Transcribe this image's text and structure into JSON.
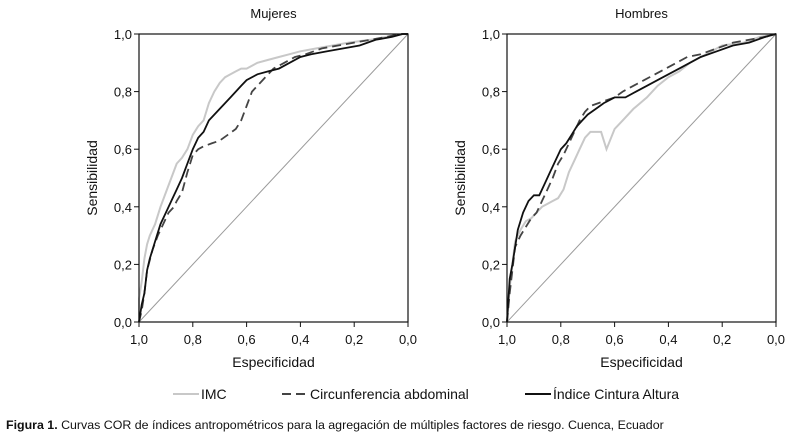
{
  "chart_data": [
    {
      "type": "line",
      "title": "Mujeres",
      "xlabel": "Especificidad",
      "ylabel": "Sensibilidad",
      "xlim": [
        1.0,
        0.0
      ],
      "ylim": [
        0.0,
        1.0
      ],
      "x_ticks": [
        "1,0",
        "0,8",
        "0,6",
        "0,4",
        "0,2",
        "0,0"
      ],
      "y_ticks": [
        "0,0",
        "0,2",
        "0,4",
        "0,6",
        "0,8",
        "1,0"
      ],
      "grid": false,
      "reference_line": true,
      "series": [
        {
          "name": "IMC",
          "style": "solid",
          "color": "#c8c8c8",
          "width": 2,
          "x": [
            1.0,
            1.0,
            0.99,
            0.98,
            0.97,
            0.96,
            0.94,
            0.92,
            0.9,
            0.88,
            0.86,
            0.84,
            0.82,
            0.8,
            0.78,
            0.76,
            0.74,
            0.72,
            0.7,
            0.68,
            0.66,
            0.64,
            0.62,
            0.6,
            0.56,
            0.52,
            0.48,
            0.44,
            0.4,
            0.34,
            0.28,
            0.22,
            0.14,
            0.08,
            0.02,
            0.0
          ],
          "y": [
            0.0,
            0.08,
            0.14,
            0.22,
            0.27,
            0.3,
            0.34,
            0.4,
            0.45,
            0.5,
            0.55,
            0.57,
            0.6,
            0.65,
            0.68,
            0.7,
            0.76,
            0.8,
            0.83,
            0.85,
            0.86,
            0.87,
            0.88,
            0.88,
            0.9,
            0.91,
            0.92,
            0.93,
            0.94,
            0.95,
            0.96,
            0.97,
            0.98,
            0.99,
            1.0,
            1.0
          ]
        },
        {
          "name": "Circunferencia abdominal",
          "style": "dashed",
          "color": "#444444",
          "width": 1.8,
          "x": [
            1.0,
            0.99,
            0.98,
            0.97,
            0.95,
            0.93,
            0.91,
            0.89,
            0.87,
            0.86,
            0.84,
            0.82,
            0.81,
            0.8,
            0.78,
            0.76,
            0.73,
            0.7,
            0.67,
            0.64,
            0.62,
            0.6,
            0.58,
            0.56,
            0.53,
            0.5,
            0.46,
            0.42,
            0.38,
            0.32,
            0.26,
            0.2,
            0.14,
            0.08,
            0.03,
            0.0
          ],
          "y": [
            0.0,
            0.04,
            0.1,
            0.18,
            0.25,
            0.3,
            0.34,
            0.38,
            0.4,
            0.42,
            0.45,
            0.52,
            0.55,
            0.58,
            0.6,
            0.61,
            0.62,
            0.63,
            0.65,
            0.67,
            0.7,
            0.75,
            0.8,
            0.82,
            0.85,
            0.88,
            0.9,
            0.92,
            0.93,
            0.95,
            0.96,
            0.97,
            0.98,
            0.99,
            1.0,
            1.0
          ]
        },
        {
          "name": "Índice Cintura Altura",
          "style": "solid",
          "color": "#111111",
          "width": 1.8,
          "x": [
            1.0,
            0.99,
            0.98,
            0.97,
            0.96,
            0.94,
            0.92,
            0.9,
            0.88,
            0.86,
            0.84,
            0.82,
            0.8,
            0.78,
            0.76,
            0.74,
            0.72,
            0.7,
            0.68,
            0.66,
            0.64,
            0.62,
            0.6,
            0.56,
            0.52,
            0.48,
            0.44,
            0.4,
            0.36,
            0.3,
            0.24,
            0.18,
            0.12,
            0.06,
            0.02,
            0.0
          ],
          "y": [
            0.0,
            0.06,
            0.1,
            0.18,
            0.22,
            0.28,
            0.34,
            0.38,
            0.42,
            0.46,
            0.5,
            0.55,
            0.6,
            0.64,
            0.66,
            0.7,
            0.72,
            0.74,
            0.76,
            0.78,
            0.8,
            0.82,
            0.84,
            0.86,
            0.87,
            0.88,
            0.9,
            0.92,
            0.93,
            0.94,
            0.95,
            0.96,
            0.98,
            0.99,
            1.0,
            1.0
          ]
        }
      ]
    },
    {
      "type": "line",
      "title": "Hombres",
      "xlabel": "Especificidad",
      "ylabel": "Sensibilidad",
      "xlim": [
        1.0,
        0.0
      ],
      "ylim": [
        0.0,
        1.0
      ],
      "x_ticks": [
        "1,0",
        "0,8",
        "0,6",
        "0,4",
        "0,2",
        "0,0"
      ],
      "y_ticks": [
        "0,0",
        "0,2",
        "0,4",
        "0,6",
        "0,8",
        "1,0"
      ],
      "grid": false,
      "reference_line": true,
      "series": [
        {
          "name": "IMC",
          "style": "solid",
          "color": "#c8c8c8",
          "width": 2,
          "x": [
            1.0,
            0.99,
            0.98,
            0.97,
            0.95,
            0.93,
            0.91,
            0.89,
            0.87,
            0.85,
            0.83,
            0.81,
            0.79,
            0.77,
            0.75,
            0.73,
            0.71,
            0.69,
            0.67,
            0.65,
            0.63,
            0.6,
            0.57,
            0.53,
            0.48,
            0.44,
            0.4,
            0.36,
            0.32,
            0.26,
            0.2,
            0.12,
            0.06,
            0.0
          ],
          "y": [
            0.0,
            0.12,
            0.2,
            0.28,
            0.32,
            0.35,
            0.36,
            0.38,
            0.4,
            0.41,
            0.42,
            0.43,
            0.46,
            0.52,
            0.56,
            0.6,
            0.64,
            0.66,
            0.66,
            0.66,
            0.6,
            0.67,
            0.7,
            0.74,
            0.78,
            0.82,
            0.85,
            0.87,
            0.9,
            0.93,
            0.96,
            0.97,
            0.99,
            1.0
          ]
        },
        {
          "name": "Circunferencia abdominal",
          "style": "dashed",
          "color": "#444444",
          "width": 1.8,
          "x": [
            1.0,
            0.99,
            0.98,
            0.97,
            0.95,
            0.93,
            0.91,
            0.89,
            0.87,
            0.85,
            0.83,
            0.81,
            0.79,
            0.77,
            0.75,
            0.73,
            0.71,
            0.69,
            0.66,
            0.63,
            0.6,
            0.57,
            0.53,
            0.49,
            0.45,
            0.41,
            0.37,
            0.33,
            0.28,
            0.22,
            0.16,
            0.1,
            0.04,
            0.0
          ],
          "y": [
            0.0,
            0.1,
            0.18,
            0.26,
            0.3,
            0.33,
            0.36,
            0.38,
            0.42,
            0.46,
            0.5,
            0.55,
            0.58,
            0.62,
            0.66,
            0.7,
            0.73,
            0.75,
            0.76,
            0.77,
            0.78,
            0.8,
            0.82,
            0.84,
            0.86,
            0.88,
            0.9,
            0.92,
            0.93,
            0.95,
            0.97,
            0.98,
            0.99,
            1.0
          ]
        },
        {
          "name": "Índice Cintura Altura",
          "style": "solid",
          "color": "#111111",
          "width": 1.8,
          "x": [
            1.0,
            0.99,
            0.98,
            0.97,
            0.96,
            0.94,
            0.92,
            0.9,
            0.88,
            0.86,
            0.84,
            0.82,
            0.8,
            0.78,
            0.76,
            0.74,
            0.72,
            0.7,
            0.67,
            0.64,
            0.6,
            0.56,
            0.52,
            0.48,
            0.44,
            0.4,
            0.36,
            0.32,
            0.28,
            0.22,
            0.16,
            0.1,
            0.04,
            0.0
          ],
          "y": [
            0.0,
            0.15,
            0.2,
            0.26,
            0.32,
            0.38,
            0.42,
            0.44,
            0.44,
            0.48,
            0.52,
            0.56,
            0.6,
            0.62,
            0.65,
            0.68,
            0.7,
            0.72,
            0.74,
            0.76,
            0.78,
            0.78,
            0.8,
            0.82,
            0.84,
            0.86,
            0.88,
            0.9,
            0.92,
            0.94,
            0.96,
            0.97,
            0.99,
            1.0
          ]
        }
      ]
    }
  ],
  "legend": {
    "items": [
      {
        "label": "IMC",
        "style": "solid",
        "color": "#c8c8c8"
      },
      {
        "label": "Circunferencia abdominal",
        "style": "dashed",
        "color": "#444444"
      },
      {
        "label": "Índice Cintura Altura",
        "style": "solid",
        "color": "#111111"
      }
    ]
  },
  "caption": {
    "label": "Figura 1.",
    "text": " Curvas COR de índices antropométricos para la agregación de múltiples factores de riesgo. Cuenca, Ecuador"
  }
}
